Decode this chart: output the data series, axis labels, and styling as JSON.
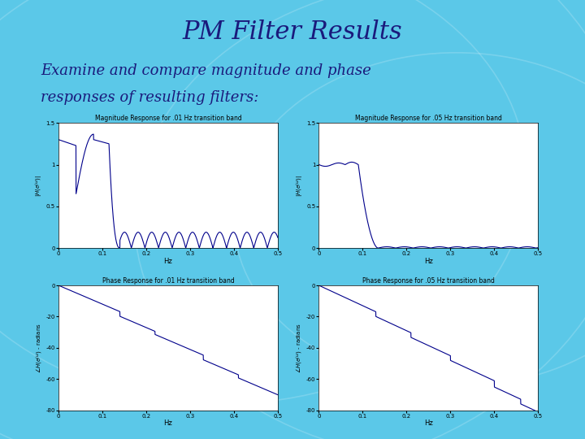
{
  "title": "PM Filter Results",
  "subtitle_line1": "Examine and compare magnitude and phase",
  "subtitle_line2": "responses of resulting filters:",
  "bg_color": "#5bc8e8",
  "title_color": "#1a1a7c",
  "subtitle_color": "#1a1a7c",
  "plot_bg": "#ffffff",
  "line_color": "#00008b",
  "subplot_titles": [
    "Magnitude Response for .01 Hz transition band",
    "Magnitude Response for .05 Hz transition band",
    "Phase Response for .01 Hz transition band",
    "Phase Response for .05 Hz transition band"
  ],
  "xlabel": "Hz",
  "mag_ylim": [
    0,
    1.5
  ],
  "phase_ylim": [
    -80,
    0
  ],
  "xlim": [
    0,
    0.5
  ],
  "xticks": [
    0,
    0.1,
    0.2,
    0.3,
    0.4,
    0.5
  ],
  "mag_yticks": [
    0,
    0.5,
    1.0,
    1.5
  ],
  "phase_yticks": [
    -80,
    -60,
    -40,
    -20,
    0
  ],
  "title_fontsize": 22,
  "subtitle_fontsize": 13
}
